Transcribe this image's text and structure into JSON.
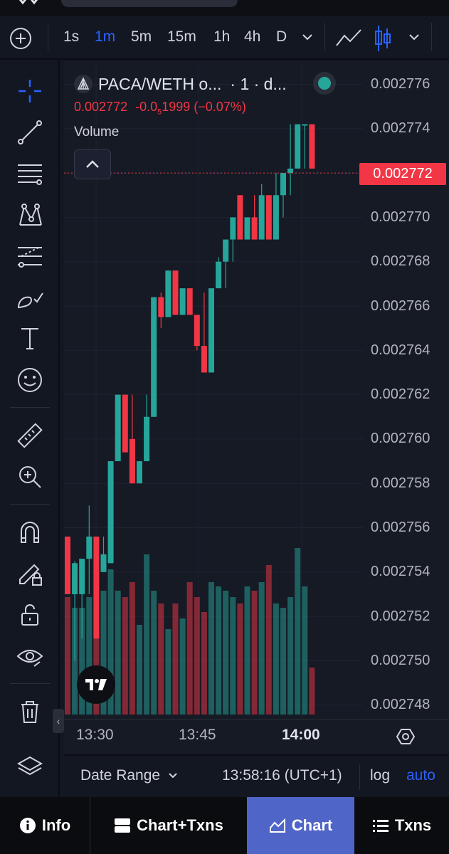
{
  "toolbar": {
    "intervals": [
      {
        "label": "1s",
        "active": false
      },
      {
        "label": "1m",
        "active": true
      },
      {
        "label": "5m",
        "active": false
      },
      {
        "label": "15m",
        "active": false
      },
      {
        "label": "1h",
        "active": false
      },
      {
        "label": "4h",
        "active": false
      },
      {
        "label": "D",
        "active": false
      }
    ]
  },
  "legend": {
    "symbol": "PACA/WETH o...",
    "meta": "· 1 · d...",
    "ohlc_price": "0.002772",
    "ohlc_change": "-0.0",
    "ohlc_change_sub": "5",
    "ohlc_change_rest": "1999 (−0.07%)",
    "volume_label": "Volume"
  },
  "price_axis": {
    "labels": [
      "0.002776",
      "0.002774",
      "0.002772",
      "0.002770",
      "0.002768",
      "0.002766",
      "0.002764",
      "0.002762",
      "0.002760",
      "0.002758",
      "0.002756",
      "0.002754",
      "0.002752",
      "0.002750",
      "0.002748"
    ],
    "last_price": "0.002772"
  },
  "time_axis": {
    "labels": [
      {
        "text": "13:30",
        "bold": false
      },
      {
        "text": "13:45",
        "bold": false
      },
      {
        "text": "14:00",
        "bold": true
      }
    ]
  },
  "bottom_bar": {
    "date_range": "Date Range",
    "clock": "13:58:16 (UTC+1)",
    "log": "log",
    "auto": "auto"
  },
  "nav": {
    "info": "Info",
    "chart_txns": "Chart+Txns",
    "chart": "Chart",
    "txns": "Txns"
  },
  "colors": {
    "up": "#26a69a",
    "down": "#f23645",
    "accent": "#2962ff",
    "nav_active": "#5065c8"
  },
  "chart_data": {
    "type": "candlestick",
    "pair": "PACA/WETH",
    "interval": "1m",
    "ylim": [
      0.0027475,
      0.0027765
    ],
    "x_ticks": [
      "13:30",
      "13:45",
      "14:00"
    ],
    "candles": [
      {
        "o": 0.0027556,
        "h": 0.0027556,
        "l": 0.002753,
        "c": 0.002753,
        "v": 0.55
      },
      {
        "o": 0.002753,
        "h": 0.0027545,
        "l": 0.00275,
        "c": 0.0027544,
        "v": 0.5
      },
      {
        "o": 0.002753,
        "h": 0.0027546,
        "l": 0.002751,
        "c": 0.0027546,
        "v": 0.5
      },
      {
        "o": 0.0027546,
        "h": 0.002757,
        "l": 0.002753,
        "c": 0.0027556,
        "v": 0.55
      },
      {
        "o": 0.0027556,
        "h": 0.0027556,
        "l": 0.002751,
        "c": 0.002751,
        "v": 0.4
      },
      {
        "o": 0.002754,
        "h": 0.0027556,
        "l": 0.002754,
        "c": 0.0027548,
        "v": 0.58
      },
      {
        "o": 0.0027544,
        "h": 0.002759,
        "l": 0.0027544,
        "c": 0.002759,
        "v": 0.68
      },
      {
        "o": 0.002759,
        "h": 0.002762,
        "l": 0.002759,
        "c": 0.002762,
        "v": 0.58
      },
      {
        "o": 0.002762,
        "h": 0.002762,
        "l": 0.0027594,
        "c": 0.0027594,
        "v": 0.55
      },
      {
        "o": 0.00276,
        "h": 0.002762,
        "l": 0.002758,
        "c": 0.002758,
        "v": 0.62
      },
      {
        "o": 0.002758,
        "h": 0.002759,
        "l": 0.002758,
        "c": 0.002759,
        "v": 0.42
      },
      {
        "o": 0.002759,
        "h": 0.002762,
        "l": 0.002759,
        "c": 0.002761,
        "v": 0.75
      },
      {
        "o": 0.002761,
        "h": 0.0027664,
        "l": 0.002761,
        "c": 0.0027664,
        "v": 0.58
      },
      {
        "o": 0.0027664,
        "h": 0.0027666,
        "l": 0.002765,
        "c": 0.0027655,
        "v": 0.52
      },
      {
        "o": 0.0027655,
        "h": 0.0027676,
        "l": 0.0027655,
        "c": 0.0027676,
        "v": 0.4
      },
      {
        "o": 0.0027676,
        "h": 0.0027676,
        "l": 0.0027656,
        "c": 0.0027656,
        "v": 0.52
      },
      {
        "o": 0.0027656,
        "h": 0.0027668,
        "l": 0.0027656,
        "c": 0.0027668,
        "v": 0.45
      },
      {
        "o": 0.0027668,
        "h": 0.0027668,
        "l": 0.0027656,
        "c": 0.0027656,
        "v": 0.62
      },
      {
        "o": 0.0027656,
        "h": 0.0027656,
        "l": 0.002764,
        "c": 0.0027642,
        "v": 0.55
      },
      {
        "o": 0.0027642,
        "h": 0.0027666,
        "l": 0.002763,
        "c": 0.002763,
        "v": 0.48
      },
      {
        "o": 0.002763,
        "h": 0.0027668,
        "l": 0.002763,
        "c": 0.0027668,
        "v": 0.62
      },
      {
        "o": 0.0027668,
        "h": 0.0027682,
        "l": 0.0027668,
        "c": 0.002768,
        "v": 0.6
      },
      {
        "o": 0.002768,
        "h": 0.002769,
        "l": 0.0027668,
        "c": 0.002769,
        "v": 0.58
      },
      {
        "o": 0.002769,
        "h": 0.00277,
        "l": 0.002768,
        "c": 0.00277,
        "v": 0.55
      },
      {
        "o": 0.002771,
        "h": 0.002771,
        "l": 0.002769,
        "c": 0.002769,
        "v": 0.52
      },
      {
        "o": 0.002769,
        "h": 0.00277,
        "l": 0.002769,
        "c": 0.00277,
        "v": 0.6
      },
      {
        "o": 0.00277,
        "h": 0.002771,
        "l": 0.002769,
        "c": 0.002769,
        "v": 0.58
      },
      {
        "o": 0.002769,
        "h": 0.0027715,
        "l": 0.002769,
        "c": 0.002771,
        "v": 0.62
      },
      {
        "o": 0.002771,
        "h": 0.002771,
        "l": 0.002769,
        "c": 0.002769,
        "v": 0.7
      },
      {
        "o": 0.002769,
        "h": 0.002772,
        "l": 0.002769,
        "c": 0.002771,
        "v": 0.52
      },
      {
        "o": 0.002771,
        "h": 0.002772,
        "l": 0.00277,
        "c": 0.002772,
        "v": 0.5
      },
      {
        "o": 0.002772,
        "h": 0.0027742,
        "l": 0.002771,
        "c": 0.0027722,
        "v": 0.55
      },
      {
        "o": 0.0027722,
        "h": 0.0027742,
        "l": 0.0027722,
        "c": 0.0027742,
        "v": 0.78
      },
      {
        "o": 0.0027742,
        "h": 0.0027742,
        "l": 0.0027722,
        "c": 0.0027742,
        "v": 0.6
      },
      {
        "o": 0.0027742,
        "h": 0.0027742,
        "l": 0.0027722,
        "c": 0.0027722,
        "v": 0.22
      }
    ]
  }
}
